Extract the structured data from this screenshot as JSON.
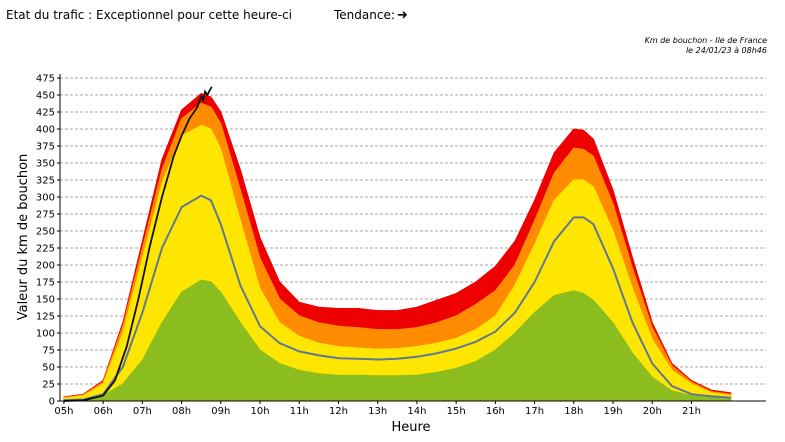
{
  "header": {
    "status_label": "Etat du trafic : Exceptionnel pour cette heure-ci",
    "trend_label": "Tendance:",
    "trend_icon": "arrow-right-icon"
  },
  "chart_data": {
    "type": "area",
    "title_line1": "Km de bouchon - Ile de France",
    "title_line2": "le 24/01/23 à 08h46",
    "xlabel": "Heure",
    "ylabel": "Valeur du  km de bouchon",
    "xlim": [
      4.9,
      22.9
    ],
    "ylim": [
      0,
      475
    ],
    "y_ticks": [
      0,
      25,
      50,
      75,
      100,
      125,
      150,
      175,
      200,
      225,
      250,
      275,
      300,
      325,
      350,
      375,
      400,
      425,
      450,
      475
    ],
    "x_ticks": [
      5,
      6,
      7,
      8,
      9,
      10,
      11,
      12,
      13,
      14,
      15,
      16,
      17,
      18,
      19,
      20,
      21
    ],
    "x_tick_labels": [
      "05h",
      "06h",
      "07h",
      "08h",
      "09h",
      "10h",
      "11h",
      "12h",
      "13h",
      "14h",
      "15h",
      "16h",
      "17h",
      "18h",
      "19h",
      "20h",
      "21h"
    ],
    "grid": "horizontal dashed",
    "x": [
      5,
      5.5,
      6,
      6.5,
      7,
      7.5,
      8,
      8.5,
      8.75,
      9,
      9.5,
      10,
      10.5,
      11,
      11.5,
      12,
      12.5,
      13,
      13.5,
      14,
      14.5,
      15,
      15.5,
      16,
      16.5,
      17,
      17.5,
      18,
      18.25,
      18.5,
      19,
      19.5,
      20,
      20.5,
      21,
      21.5,
      22
    ],
    "series": [
      {
        "color": "#8cbd1e",
        "values": [
          2,
          3,
          8,
          25,
          60,
          115,
          160,
          178,
          175,
          160,
          115,
          75,
          55,
          45,
          40,
          38,
          38,
          37,
          37,
          38,
          42,
          48,
          58,
          75,
          100,
          130,
          155,
          162,
          158,
          148,
          115,
          70,
          35,
          15,
          8,
          6,
          5
        ]
      },
      {
        "color": "#ffe600",
        "values": [
          4,
          8,
          25,
          100,
          210,
          320,
          390,
          405,
          400,
          370,
          265,
          165,
          115,
          95,
          85,
          80,
          78,
          76,
          77,
          80,
          85,
          92,
          105,
          125,
          170,
          230,
          295,
          325,
          325,
          315,
          250,
          165,
          90,
          45,
          25,
          12,
          8
        ]
      },
      {
        "color": "#ff8c00",
        "values": [
          5,
          9,
          28,
          110,
          225,
          340,
          415,
          438,
          432,
          408,
          310,
          210,
          150,
          125,
          115,
          110,
          108,
          105,
          105,
          108,
          115,
          125,
          142,
          162,
          200,
          265,
          335,
          372,
          370,
          360,
          290,
          195,
          108,
          52,
          28,
          14,
          10
        ]
      },
      {
        "color": "#ee0000",
        "values": [
          6,
          10,
          30,
          115,
          235,
          355,
          428,
          452,
          447,
          425,
          340,
          240,
          175,
          145,
          138,
          136,
          136,
          133,
          133,
          138,
          148,
          158,
          175,
          198,
          235,
          295,
          365,
          400,
          398,
          385,
          310,
          210,
          115,
          55,
          30,
          16,
          12
        ]
      }
    ],
    "reference_line": {
      "color": "#5f7894",
      "values": [
        1,
        2,
        10,
        50,
        130,
        225,
        285,
        302,
        295,
        260,
        170,
        110,
        85,
        73,
        67,
        63,
        62,
        61,
        62,
        65,
        70,
        77,
        87,
        102,
        130,
        175,
        235,
        270,
        270,
        260,
        195,
        115,
        55,
        22,
        10,
        7,
        5
      ]
    },
    "current_day": {
      "color": "#111111",
      "x": [
        5,
        5.5,
        6,
        6.3,
        6.6,
        6.9,
        7.2,
        7.5,
        7.8,
        8,
        8.2,
        8.4,
        8.5,
        8.55,
        8.6,
        8.66,
        8.7,
        8.77
      ],
      "values": [
        0,
        1,
        8,
        30,
        80,
        150,
        230,
        300,
        360,
        390,
        415,
        432,
        448,
        442,
        455,
        450,
        455,
        462
      ]
    }
  }
}
